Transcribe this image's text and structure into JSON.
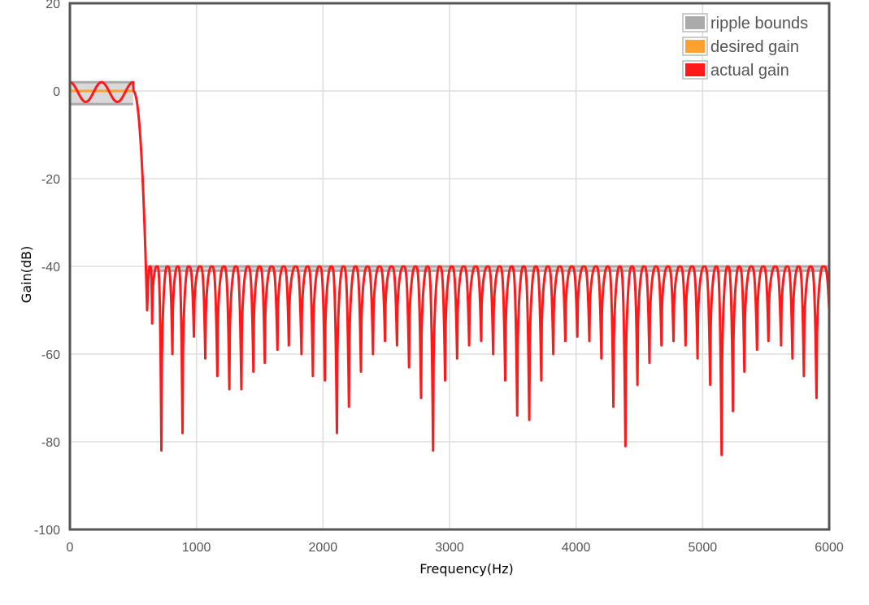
{
  "chart_data": {
    "type": "line",
    "title": "",
    "xlabel": "Frequency(Hz)",
    "ylabel": "Gain(dB)",
    "xlim": [
      0,
      6000
    ],
    "ylim": [
      -100,
      20
    ],
    "x_ticks": [
      "0",
      "1000",
      "2000",
      "3000",
      "4000",
      "5000",
      "6000"
    ],
    "y_ticks": [
      "20",
      "0",
      "-20",
      "-40",
      "-60",
      "-80",
      "-100"
    ],
    "grid": true,
    "legend_position": "top-right",
    "legend": [
      {
        "label": "ripple bounds",
        "color": "#aaaaaa"
      },
      {
        "label": "desired gain",
        "color": "#ffa033"
      },
      {
        "label": "actual gain",
        "color": "#ff1a1a"
      }
    ],
    "series": [
      {
        "name": "ripple bounds",
        "segments": [
          {
            "x": [
              0,
              500
            ],
            "y_low": -3,
            "y_high": 2
          },
          {
            "x": [
              600,
              6000
            ],
            "y_low": -41,
            "y_high": -40
          }
        ]
      },
      {
        "name": "desired gain",
        "points": [
          [
            0,
            0
          ],
          [
            500,
            0
          ]
        ]
      },
      {
        "name": "actual gain",
        "passband": {
          "x": [
            0,
            500
          ],
          "ripple_peaks_db": [
            2,
            2,
            2
          ],
          "ripple_troughs_db": [
            -2.5,
            -2.5
          ]
        },
        "transition": {
          "x": [
            500,
            610
          ],
          "y": [
            0,
            -50
          ]
        },
        "stopband_peak_db": -40,
        "stopband_start": 610,
        "stopband_end": 6000,
        "stopband_null_spacing_hz": 95.2,
        "stopband_notches": [
          {
            "x": 615,
            "y": -50
          },
          {
            "x": 650,
            "y": -53
          },
          {
            "x": 723,
            "y": -82
          },
          {
            "x": 810,
            "y": -60
          },
          {
            "x": 890,
            "y": -78
          },
          {
            "x": 980,
            "y": -56
          },
          {
            "x": 1070,
            "y": -61
          },
          {
            "x": 1165,
            "y": -65
          },
          {
            "x": 1260,
            "y": -68
          },
          {
            "x": 1355,
            "y": -68
          },
          {
            "x": 1450,
            "y": -64
          },
          {
            "x": 1540,
            "y": -62
          },
          {
            "x": 1640,
            "y": -59
          },
          {
            "x": 1730,
            "y": -58
          },
          {
            "x": 1830,
            "y": -60
          },
          {
            "x": 1920,
            "y": -65
          },
          {
            "x": 2015,
            "y": -66
          },
          {
            "x": 2110,
            "y": -78
          },
          {
            "x": 2205,
            "y": -72
          },
          {
            "x": 2300,
            "y": -64
          },
          {
            "x": 2395,
            "y": -60
          },
          {
            "x": 2490,
            "y": -57
          },
          {
            "x": 2585,
            "y": -58
          },
          {
            "x": 2680,
            "y": -63
          },
          {
            "x": 2775,
            "y": -70
          },
          {
            "x": 2870,
            "y": -82
          },
          {
            "x": 2965,
            "y": -66
          },
          {
            "x": 3060,
            "y": -61
          },
          {
            "x": 3155,
            "y": -58
          },
          {
            "x": 3250,
            "y": -57
          },
          {
            "x": 3345,
            "y": -60
          },
          {
            "x": 3440,
            "y": -66
          },
          {
            "x": 3535,
            "y": -74
          },
          {
            "x": 3630,
            "y": -75
          },
          {
            "x": 3725,
            "y": -66
          },
          {
            "x": 3820,
            "y": -60
          },
          {
            "x": 3915,
            "y": -57
          },
          {
            "x": 4010,
            "y": -56
          },
          {
            "x": 4105,
            "y": -57
          },
          {
            "x": 4200,
            "y": -61
          },
          {
            "x": 4295,
            "y": -72
          },
          {
            "x": 4390,
            "y": -81
          },
          {
            "x": 4485,
            "y": -67
          },
          {
            "x": 4580,
            "y": -62
          },
          {
            "x": 4675,
            "y": -58
          },
          {
            "x": 4770,
            "y": -57
          },
          {
            "x": 4865,
            "y": -58
          },
          {
            "x": 4960,
            "y": -61
          },
          {
            "x": 5060,
            "y": -67
          },
          {
            "x": 5150,
            "y": -83
          },
          {
            "x": 5240,
            "y": -73
          },
          {
            "x": 5330,
            "y": -64
          },
          {
            "x": 5430,
            "y": -59
          },
          {
            "x": 5520,
            "y": -57
          },
          {
            "x": 5620,
            "y": -58
          },
          {
            "x": 5710,
            "y": -61
          },
          {
            "x": 5800,
            "y": -65
          },
          {
            "x": 5900,
            "y": -70
          },
          {
            "x": 6000,
            "y": -50
          }
        ]
      }
    ]
  },
  "colors": {
    "ripple": "#aaaaaa",
    "desired": "#ffa033",
    "actual": "#ff1a1a",
    "grid": "#dddddd",
    "axis": "#555555"
  }
}
